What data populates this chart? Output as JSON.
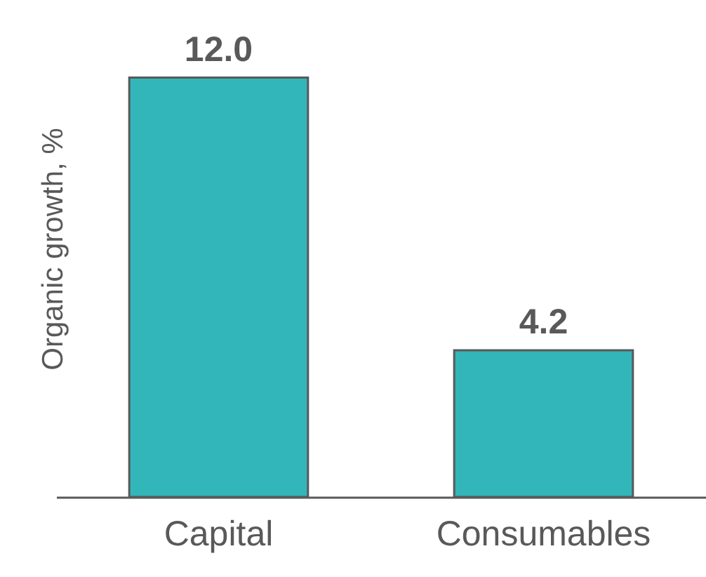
{
  "chart_data": {
    "type": "bar",
    "ylabel": "Organic growth, %",
    "categories": [
      "Capital",
      "Consumables"
    ],
    "values": [
      12.0,
      4.2
    ],
    "value_labels": [
      "12.0",
      "4.2"
    ],
    "color": "#32b6b9",
    "grid": false
  }
}
